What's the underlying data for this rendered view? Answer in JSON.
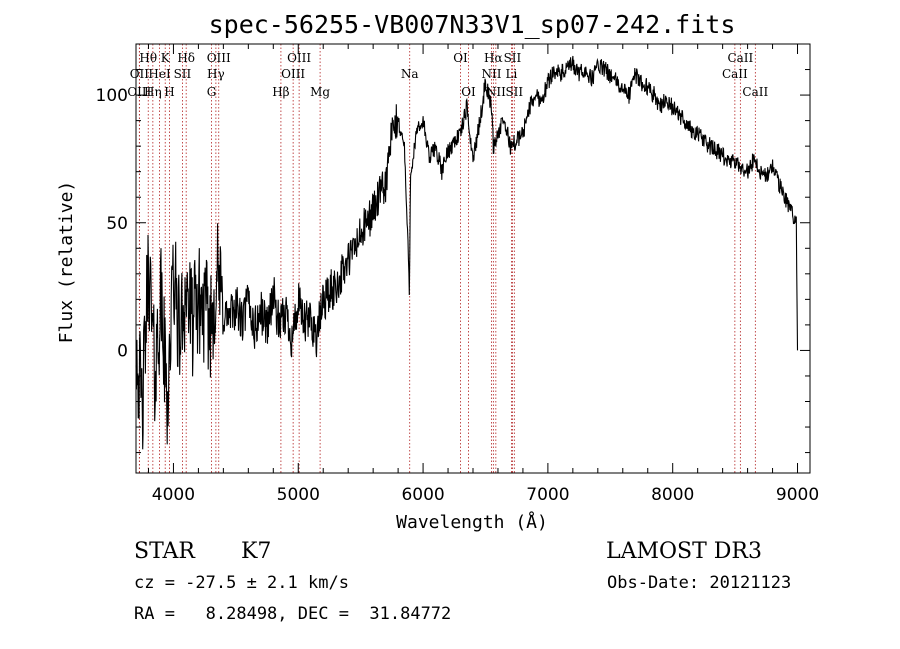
{
  "chart_data": {
    "type": "line",
    "title": "spec-56255-VB007N33V1_sp07-242.fits",
    "xlabel": "Wavelength (Å)",
    "ylabel": "Flux (relative)",
    "xlim": [
      3700,
      9100
    ],
    "ylim": [
      -48,
      120
    ],
    "xticks": [
      4000,
      5000,
      6000,
      7000,
      8000,
      9000
    ],
    "yticks": [
      0,
      50,
      100
    ],
    "xminor_step": 200,
    "yminor_step": 10,
    "series": [
      {
        "name": "flux",
        "x": [
          3700,
          3750,
          3800,
          3850,
          3900,
          3950,
          4000,
          4050,
          4100,
          4150,
          4200,
          4250,
          4300,
          4350,
          4400,
          4450,
          4500,
          4550,
          4600,
          4650,
          4700,
          4750,
          4800,
          4850,
          4900,
          4950,
          5000,
          5050,
          5100,
          5150,
          5200,
          5250,
          5300,
          5350,
          5400,
          5450,
          5500,
          5550,
          5600,
          5650,
          5700,
          5750,
          5800,
          5850,
          5890,
          5900,
          5950,
          6000,
          6050,
          6100,
          6150,
          6200,
          6250,
          6300,
          6350,
          6400,
          6450,
          6500,
          6550,
          6563,
          6600,
          6650,
          6700,
          6750,
          6800,
          6850,
          6900,
          6950,
          7000,
          7050,
          7100,
          7150,
          7200,
          7250,
          7300,
          7350,
          7400,
          7450,
          7500,
          7550,
          7600,
          7650,
          7700,
          7750,
          7800,
          7850,
          7900,
          7950,
          8000,
          8050,
          8100,
          8150,
          8200,
          8250,
          8300,
          8350,
          8400,
          8450,
          8500,
          8550,
          8600,
          8650,
          8700,
          8750,
          8800,
          8850,
          8900,
          8950,
          8990,
          9000
        ],
        "y": [
          5,
          -25,
          35,
          -10,
          20,
          -20,
          30,
          5,
          25,
          10,
          20,
          15,
          10,
          30,
          15,
          12,
          18,
          10,
          20,
          8,
          15,
          10,
          22,
          8,
          15,
          5,
          18,
          10,
          12,
          5,
          20,
          22,
          25,
          30,
          35,
          40,
          45,
          50,
          55,
          60,
          65,
          85,
          90,
          80,
          25,
          70,
          85,
          90,
          75,
          80,
          70,
          78,
          82,
          85,
          95,
          75,
          88,
          105,
          95,
          80,
          85,
          90,
          80,
          82,
          85,
          95,
          100,
          98,
          105,
          110,
          108,
          110,
          112,
          108,
          110,
          106,
          112,
          110,
          108,
          105,
          102,
          100,
          108,
          105,
          103,
          100,
          96,
          98,
          95,
          92,
          90,
          86,
          85,
          82,
          80,
          78,
          76,
          74,
          73,
          72,
          70,
          75,
          70,
          68,
          72,
          65,
          60,
          55,
          50,
          0
        ]
      }
    ],
    "lines": [
      {
        "name": "Hθ",
        "wave": 3798,
        "row": 1
      },
      {
        "name": "OII",
        "wave": 3727,
        "row": 2
      },
      {
        "name": "OIII",
        "wave": 3727,
        "row": 3
      },
      {
        "name": "Hη",
        "wave": 3835,
        "row": 3
      },
      {
        "name": "HeI",
        "wave": 3889,
        "row": 2
      },
      {
        "name": "K",
        "wave": 3934,
        "row": 1
      },
      {
        "name": "H",
        "wave": 3968,
        "row": 3
      },
      {
        "name": "SII",
        "wave": 4072,
        "row": 2
      },
      {
        "name": "Hδ",
        "wave": 4102,
        "row": 1
      },
      {
        "name": "G",
        "wave": 4305,
        "row": 3
      },
      {
        "name": "Hγ",
        "wave": 4340,
        "row": 2
      },
      {
        "name": "OIII",
        "wave": 4363,
        "row": 1
      },
      {
        "name": "Hβ",
        "wave": 4861,
        "row": 3
      },
      {
        "name": "OIII",
        "wave": 4959,
        "row": 2
      },
      {
        "name": "OIII",
        "wave": 5007,
        "row": 1
      },
      {
        "name": "Mg",
        "wave": 5175,
        "row": 3
      },
      {
        "name": "Na",
        "wave": 5893,
        "row": 2
      },
      {
        "name": "OI",
        "wave": 6300,
        "row": 1
      },
      {
        "name": "OI",
        "wave": 6364,
        "row": 3
      },
      {
        "name": "NII",
        "wave": 6548,
        "row": 2
      },
      {
        "name": "Hα",
        "wave": 6563,
        "row": 1
      },
      {
        "name": "NII",
        "wave": 6583,
        "row": 3
      },
      {
        "name": "SII",
        "wave": 6716,
        "row": 1
      },
      {
        "name": "Li",
        "wave": 6708,
        "row": 2
      },
      {
        "name": "SII",
        "wave": 6731,
        "row": 3
      },
      {
        "name": "CaII",
        "wave": 8498,
        "row": 2
      },
      {
        "name": "CaII",
        "wave": 8542,
        "row": 1
      },
      {
        "name": "CaII",
        "wave": 8662,
        "row": 3
      }
    ],
    "colors": {
      "spectrum": "#000000",
      "line_marker": "#b22222",
      "axes": "#000000"
    }
  },
  "info": {
    "class_label": "STAR",
    "subclass": "K7",
    "survey": "LAMOST DR3",
    "cz": "cz = -27.5 ± 2.1 km/s",
    "obs_date": "Obs-Date: 20121123",
    "coords": "RA =   8.28498, DEC =  31.84772"
  }
}
